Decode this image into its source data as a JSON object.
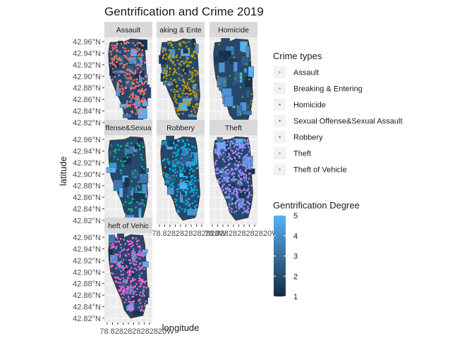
{
  "chart_data": {
    "type": "scatter",
    "title": "Gentrification and Crime 2019",
    "xlabel": "longitude",
    "ylabel": "latitude",
    "grid": true,
    "facets": [
      "Assault",
      "Breaking & Entering",
      "Homicide",
      "Sexual Offense&Sexual Assault",
      "Robbery",
      "Theft",
      "Theft of Vehicle"
    ],
    "facet_strip_labels": [
      "Assault",
      "aking & Ente",
      "Homicide",
      "ffense&Sexua",
      "Robbery",
      "Theft",
      "heft of Vehic"
    ],
    "y_ticks": [
      "42.96°N",
      "42.94°N",
      "42.92°N",
      "42.90°N",
      "42.88°N",
      "42.86°N",
      "42.84°N",
      "42.82°N"
    ],
    "y_range": [
      42.82,
      42.96
    ],
    "x_tick_overlap_text": "78.8282828282820W",
    "color_legend": {
      "title": "Crime types",
      "position": "right",
      "entries": [
        {
          "label": "Assault",
          "color": "#F8766D"
        },
        {
          "label": "Breaking & Entering",
          "color": "#C49A00"
        },
        {
          "label": "Homicide",
          "color": "#53B400"
        },
        {
          "label": "Sexual Offense&Sexual Assault",
          "color": "#00C094"
        },
        {
          "label": "Robbery",
          "color": "#00B6EB"
        },
        {
          "label": "Theft",
          "color": "#A58AFF"
        },
        {
          "label": "Theft of Vehicle",
          "color": "#FB61D7"
        }
      ]
    },
    "fill_legend": {
      "title": "Gentrification Degree",
      "min": 1,
      "max": 5,
      "ticks": [
        "1",
        "2",
        "3",
        "4",
        "5"
      ],
      "color_low": "#132B43",
      "color_high": "#56B1F7"
    }
  }
}
